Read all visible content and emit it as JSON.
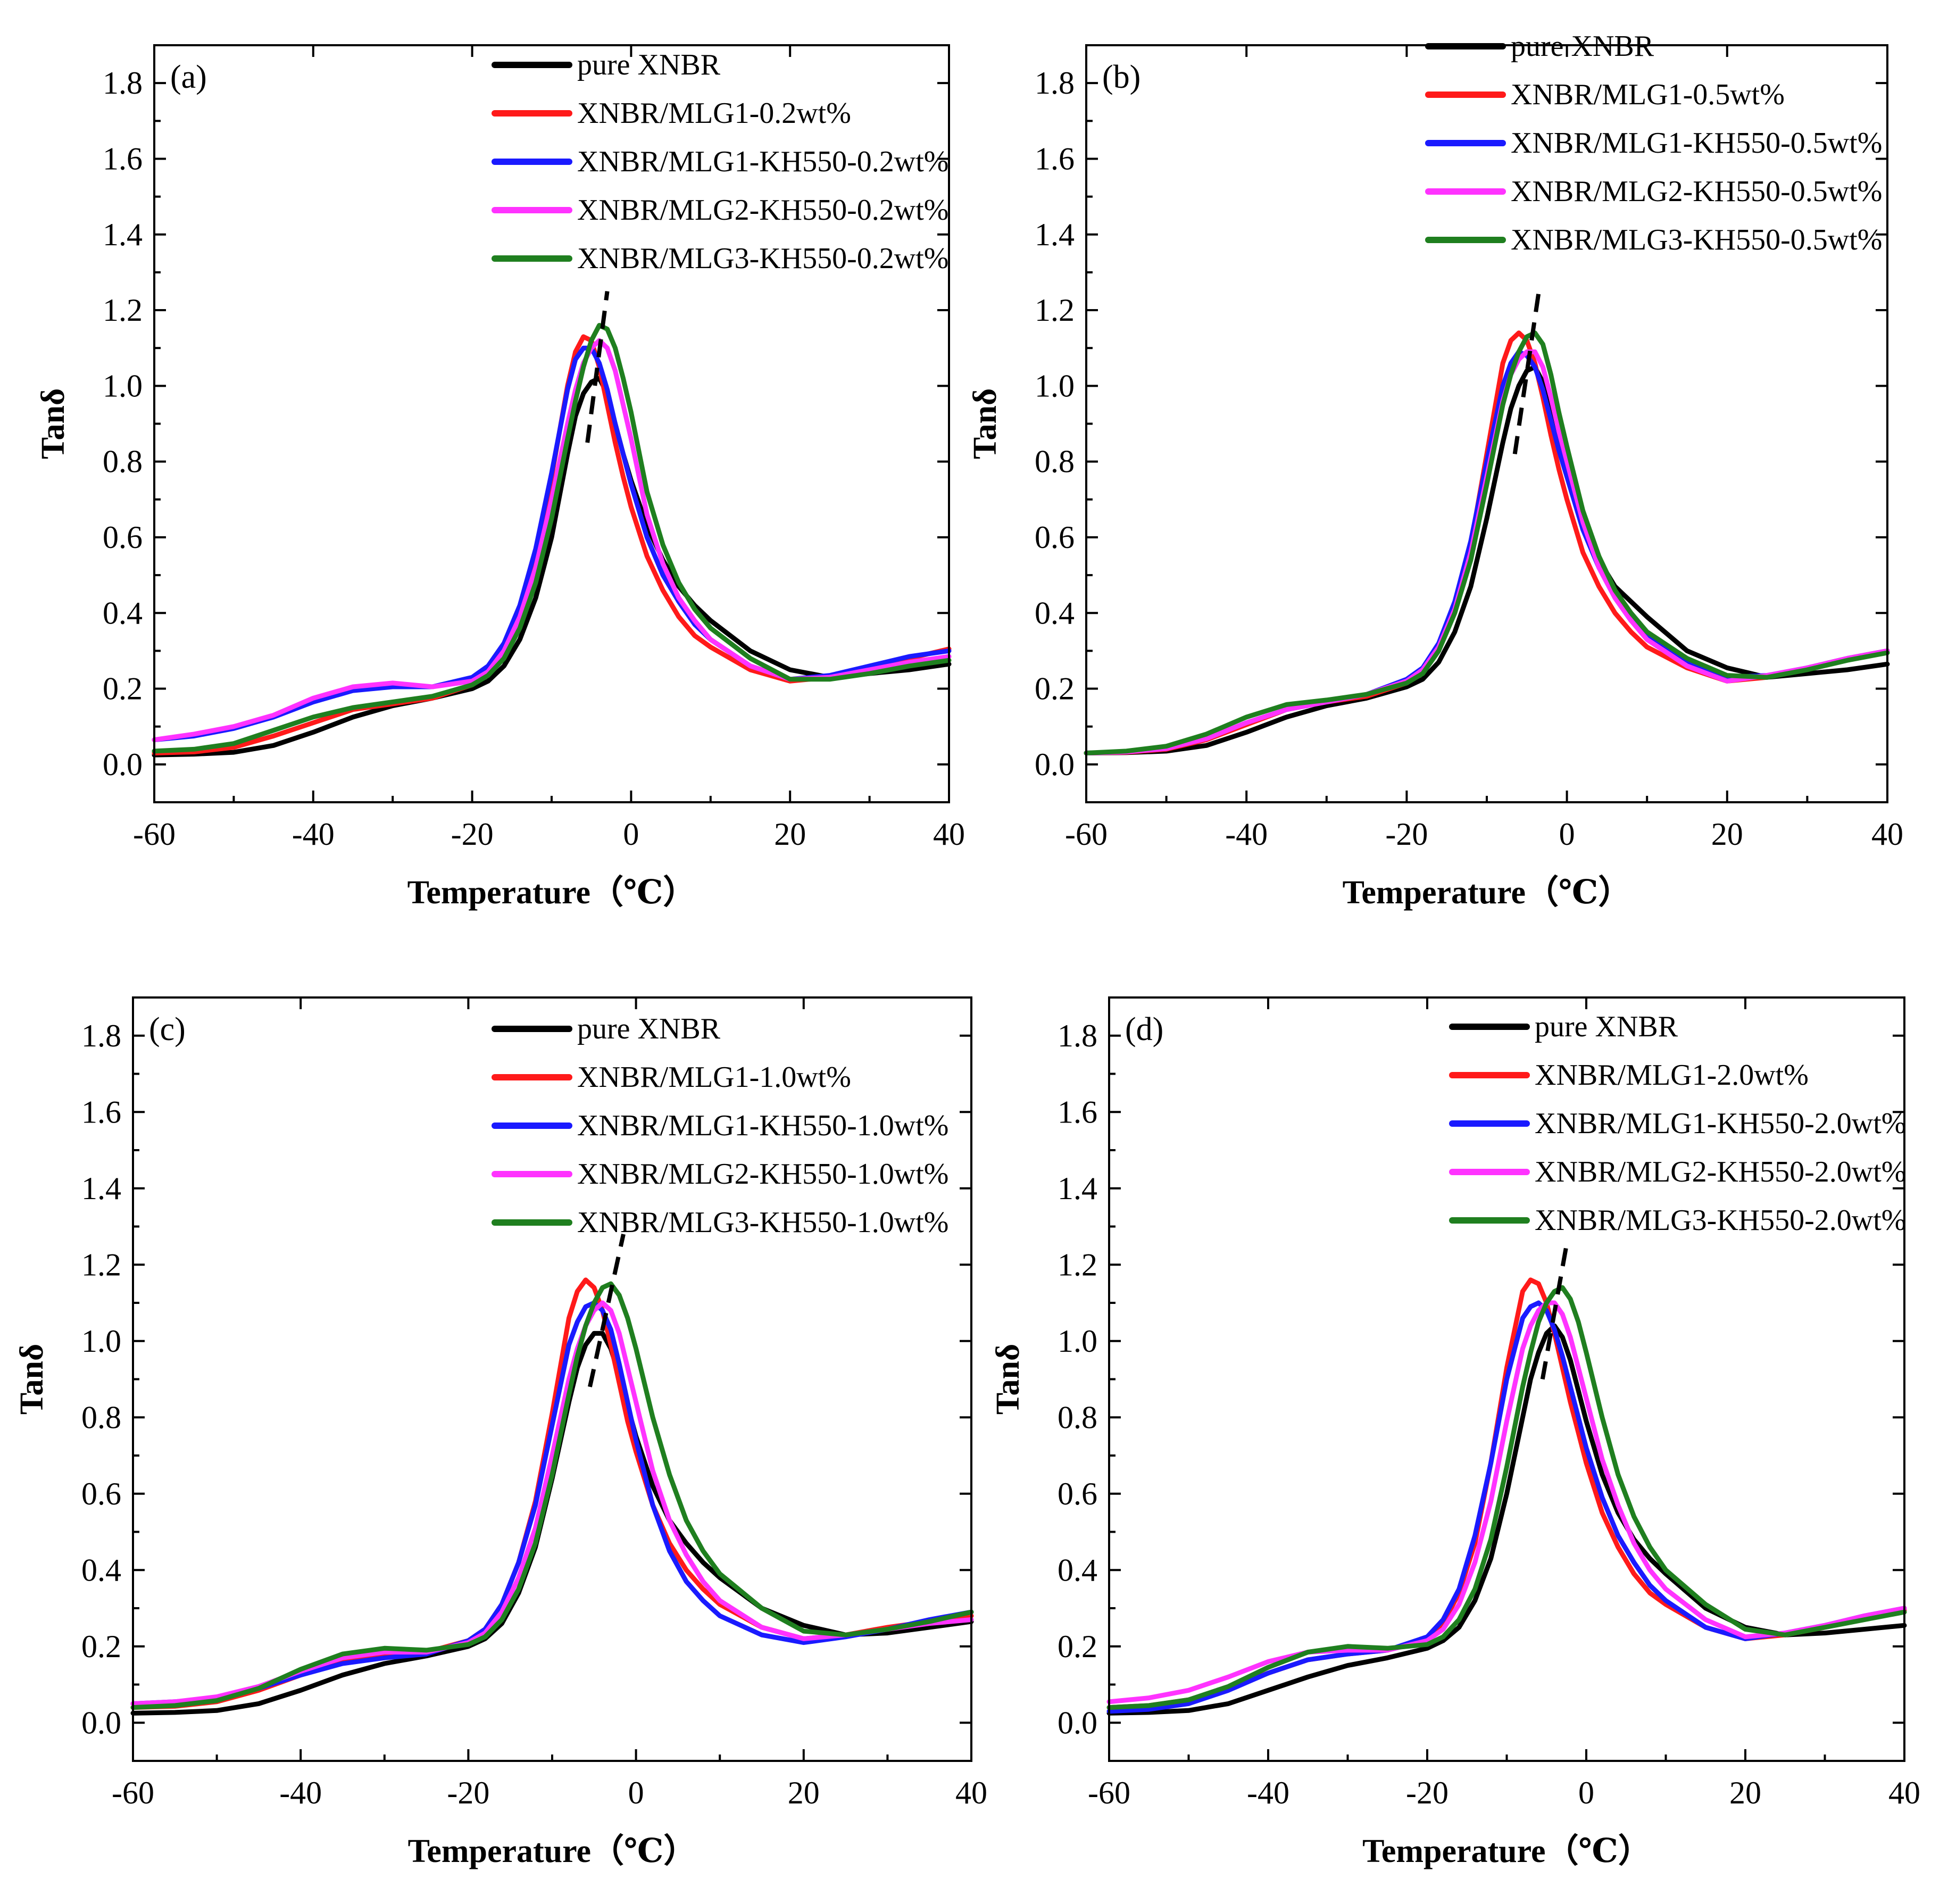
{
  "figure": {
    "colors": {
      "black": "#000000",
      "red": "#ff1a1a",
      "blue": "#1a1aff",
      "magenta": "#ff33ff",
      "green": "#1f7f1f"
    }
  },
  "chart_data": [
    {
      "type": "line",
      "panel_label": "(a)",
      "xlabel": "Temperature（℃）",
      "ylabel": "Tanδ",
      "xlim": [
        -60,
        40
      ],
      "ylim": [
        -0.1,
        1.9
      ],
      "xticks": [
        -60,
        -40,
        -20,
        0,
        20,
        40
      ],
      "yticks": [
        0.0,
        0.2,
        0.4,
        0.6,
        0.8,
        1.0,
        1.2,
        1.4,
        1.6,
        1.8
      ],
      "grid": false,
      "legend_position": "top-right",
      "x": [
        -60,
        -55,
        -50,
        -45,
        -40,
        -35,
        -30,
        -25,
        -20,
        -18,
        -16,
        -14,
        -12,
        -10,
        -8,
        -7,
        -6,
        -5,
        -4,
        -3,
        -2,
        -1,
        0,
        2,
        4,
        6,
        8,
        10,
        15,
        20,
        25,
        30,
        35,
        40
      ],
      "series": [
        {
          "name": "pure XNBR",
          "color": "black",
          "values": [
            0.025,
            0.027,
            0.032,
            0.05,
            0.085,
            0.125,
            0.155,
            0.175,
            0.2,
            0.22,
            0.26,
            0.33,
            0.44,
            0.6,
            0.82,
            0.92,
            0.98,
            1.01,
            1.02,
            0.98,
            0.9,
            0.82,
            0.75,
            0.63,
            0.54,
            0.47,
            0.42,
            0.38,
            0.3,
            0.25,
            0.23,
            0.24,
            0.25,
            0.265
          ]
        },
        {
          "name": "XNBR/MLG1-0.2wt%",
          "color": "red",
          "values": [
            0.03,
            0.033,
            0.045,
            0.075,
            0.11,
            0.145,
            0.16,
            0.175,
            0.21,
            0.24,
            0.3,
            0.4,
            0.55,
            0.76,
            1.0,
            1.09,
            1.13,
            1.12,
            1.05,
            0.95,
            0.85,
            0.76,
            0.68,
            0.55,
            0.46,
            0.39,
            0.34,
            0.31,
            0.25,
            0.22,
            0.23,
            0.25,
            0.28,
            0.305
          ]
        },
        {
          "name": "XNBR/MLG1-KH550-0.2wt%",
          "color": "blue",
          "values": [
            0.065,
            0.075,
            0.095,
            0.125,
            0.165,
            0.195,
            0.205,
            0.205,
            0.23,
            0.26,
            0.32,
            0.42,
            0.57,
            0.77,
            0.99,
            1.07,
            1.1,
            1.1,
            1.06,
            0.99,
            0.9,
            0.82,
            0.74,
            0.6,
            0.5,
            0.43,
            0.37,
            0.33,
            0.26,
            0.225,
            0.235,
            0.26,
            0.285,
            0.3
          ]
        },
        {
          "name": "XNBR/MLG2-KH550-0.2wt%",
          "color": "magenta",
          "values": [
            0.065,
            0.08,
            0.1,
            0.13,
            0.175,
            0.205,
            0.215,
            0.205,
            0.22,
            0.245,
            0.3,
            0.39,
            0.52,
            0.7,
            0.9,
            0.99,
            1.06,
            1.1,
            1.12,
            1.1,
            1.04,
            0.95,
            0.86,
            0.66,
            0.53,
            0.44,
            0.38,
            0.33,
            0.26,
            0.225,
            0.23,
            0.25,
            0.27,
            0.285
          ]
        },
        {
          "name": "XNBR/MLG3-KH550-0.2wt%",
          "color": "green",
          "values": [
            0.035,
            0.04,
            0.055,
            0.09,
            0.125,
            0.15,
            0.165,
            0.18,
            0.21,
            0.235,
            0.28,
            0.36,
            0.48,
            0.65,
            0.86,
            0.96,
            1.05,
            1.12,
            1.16,
            1.15,
            1.1,
            1.02,
            0.93,
            0.72,
            0.58,
            0.48,
            0.41,
            0.36,
            0.28,
            0.225,
            0.225,
            0.24,
            0.26,
            0.275
          ]
        }
      ],
      "peak_guide": {
        "from": [
          -5.5,
          0.85
        ],
        "to": [
          -3.0,
          1.25
        ]
      }
    },
    {
      "type": "line",
      "panel_label": "(b)",
      "xlabel": "Temperature（℃）",
      "ylabel": "Tanδ",
      "xlim": [
        -60,
        40
      ],
      "ylim": [
        -0.1,
        1.9
      ],
      "xticks": [
        -60,
        -40,
        -20,
        0,
        20,
        40
      ],
      "yticks": [
        0.0,
        0.2,
        0.4,
        0.6,
        0.8,
        1.0,
        1.2,
        1.4,
        1.6,
        1.8
      ],
      "grid": false,
      "legend_position": "top-right",
      "x": [
        -60,
        -55,
        -50,
        -45,
        -40,
        -35,
        -30,
        -25,
        -20,
        -18,
        -16,
        -14,
        -12,
        -10,
        -8,
        -7,
        -6,
        -5,
        -4,
        -3,
        -2,
        -1,
        0,
        2,
        4,
        6,
        8,
        10,
        15,
        20,
        25,
        30,
        35,
        40
      ],
      "series": [
        {
          "name": "pure XNBR",
          "color": "black",
          "values": [
            0.03,
            0.031,
            0.035,
            0.05,
            0.085,
            0.125,
            0.155,
            0.175,
            0.205,
            0.225,
            0.27,
            0.35,
            0.47,
            0.65,
            0.85,
            0.94,
            1.0,
            1.04,
            1.05,
            1.01,
            0.94,
            0.86,
            0.78,
            0.64,
            0.54,
            0.47,
            0.43,
            0.39,
            0.3,
            0.255,
            0.23,
            0.24,
            0.25,
            0.265
          ]
        },
        {
          "name": "XNBR/MLG1-0.5wt%",
          "color": "red",
          "values": [
            0.03,
            0.032,
            0.04,
            0.065,
            0.105,
            0.145,
            0.165,
            0.18,
            0.215,
            0.245,
            0.31,
            0.42,
            0.58,
            0.82,
            1.06,
            1.12,
            1.14,
            1.12,
            1.06,
            0.97,
            0.87,
            0.78,
            0.7,
            0.56,
            0.47,
            0.4,
            0.35,
            0.31,
            0.255,
            0.22,
            0.23,
            0.255,
            0.28,
            0.3
          ]
        },
        {
          "name": "XNBR/MLG1-KH550-0.5wt%",
          "color": "blue",
          "values": [
            0.03,
            0.033,
            0.042,
            0.068,
            0.11,
            0.145,
            0.165,
            0.185,
            0.225,
            0.255,
            0.32,
            0.43,
            0.59,
            0.8,
            1.0,
            1.06,
            1.09,
            1.08,
            1.05,
            0.99,
            0.91,
            0.83,
            0.76,
            0.62,
            0.52,
            0.44,
            0.38,
            0.34,
            0.27,
            0.23,
            0.235,
            0.255,
            0.28,
            0.3
          ]
        },
        {
          "name": "XNBR/MLG2-KH550-0.5wt%",
          "color": "magenta",
          "values": [
            0.03,
            0.033,
            0.042,
            0.068,
            0.11,
            0.145,
            0.165,
            0.185,
            0.22,
            0.25,
            0.31,
            0.41,
            0.56,
            0.76,
            0.96,
            1.03,
            1.07,
            1.09,
            1.09,
            1.05,
            0.97,
            0.88,
            0.8,
            0.64,
            0.52,
            0.44,
            0.38,
            0.33,
            0.26,
            0.22,
            0.235,
            0.255,
            0.28,
            0.3
          ]
        },
        {
          "name": "XNBR/MLG3-KH550-0.5wt%",
          "color": "green",
          "values": [
            0.03,
            0.035,
            0.048,
            0.08,
            0.125,
            0.158,
            0.17,
            0.185,
            0.215,
            0.24,
            0.3,
            0.4,
            0.54,
            0.74,
            0.95,
            1.03,
            1.09,
            1.13,
            1.14,
            1.11,
            1.03,
            0.93,
            0.84,
            0.67,
            0.55,
            0.46,
            0.4,
            0.35,
            0.28,
            0.235,
            0.23,
            0.25,
            0.275,
            0.295
          ]
        }
      ],
      "peak_guide": {
        "from": [
          -6.5,
          0.82
        ],
        "to": [
          -3.5,
          1.25
        ]
      }
    },
    {
      "type": "line",
      "panel_label": "(c)",
      "xlabel": "Temperature（℃）",
      "ylabel": "Tanδ",
      "xlim": [
        -60,
        40
      ],
      "ylim": [
        -0.1,
        1.9
      ],
      "xticks": [
        -60,
        -40,
        -20,
        0,
        20,
        40
      ],
      "yticks": [
        0.0,
        0.2,
        0.4,
        0.6,
        0.8,
        1.0,
        1.2,
        1.4,
        1.6,
        1.8
      ],
      "grid": false,
      "legend_position": "top-right",
      "x": [
        -60,
        -55,
        -50,
        -45,
        -40,
        -35,
        -30,
        -25,
        -20,
        -18,
        -16,
        -14,
        -12,
        -10,
        -8,
        -7,
        -6,
        -5,
        -4,
        -3,
        -2,
        -1,
        0,
        2,
        4,
        6,
        8,
        10,
        15,
        20,
        25,
        30,
        35,
        40
      ],
      "series": [
        {
          "name": "pure XNBR",
          "color": "black",
          "values": [
            0.025,
            0.027,
            0.032,
            0.05,
            0.085,
            0.125,
            0.155,
            0.175,
            0.2,
            0.22,
            0.26,
            0.34,
            0.46,
            0.64,
            0.84,
            0.93,
            0.99,
            1.02,
            1.02,
            0.98,
            0.91,
            0.83,
            0.75,
            0.62,
            0.53,
            0.47,
            0.42,
            0.38,
            0.3,
            0.255,
            0.23,
            0.235,
            0.25,
            0.265
          ]
        },
        {
          "name": "XNBR/MLG1-1.0wt%",
          "color": "red",
          "values": [
            0.04,
            0.043,
            0.055,
            0.085,
            0.125,
            0.16,
            0.175,
            0.185,
            0.215,
            0.245,
            0.31,
            0.42,
            0.58,
            0.81,
            1.06,
            1.13,
            1.16,
            1.14,
            1.08,
            0.99,
            0.89,
            0.79,
            0.71,
            0.57,
            0.47,
            0.4,
            0.35,
            0.31,
            0.25,
            0.22,
            0.23,
            0.25,
            0.265,
            0.28
          ]
        },
        {
          "name": "XNBR/MLG1-KH550-1.0wt%",
          "color": "blue",
          "values": [
            0.05,
            0.055,
            0.065,
            0.09,
            0.125,
            0.155,
            0.17,
            0.18,
            0.215,
            0.245,
            0.31,
            0.42,
            0.57,
            0.78,
            0.99,
            1.05,
            1.09,
            1.1,
            1.08,
            1.03,
            0.94,
            0.84,
            0.74,
            0.57,
            0.45,
            0.37,
            0.32,
            0.28,
            0.23,
            0.21,
            0.225,
            0.245,
            0.27,
            0.29
          ]
        },
        {
          "name": "XNBR/MLG2-KH550-1.0wt%",
          "color": "magenta",
          "values": [
            0.05,
            0.055,
            0.068,
            0.095,
            0.135,
            0.17,
            0.185,
            0.185,
            0.21,
            0.235,
            0.29,
            0.38,
            0.51,
            0.7,
            0.9,
            0.98,
            1.04,
            1.08,
            1.1,
            1.08,
            1.02,
            0.93,
            0.84,
            0.66,
            0.53,
            0.44,
            0.37,
            0.32,
            0.25,
            0.22,
            0.23,
            0.245,
            0.26,
            0.27
          ]
        },
        {
          "name": "XNBR/MLG3-KH550-1.0wt%",
          "color": "green",
          "values": [
            0.04,
            0.045,
            0.058,
            0.09,
            0.14,
            0.18,
            0.195,
            0.19,
            0.205,
            0.225,
            0.27,
            0.35,
            0.47,
            0.65,
            0.86,
            0.96,
            1.04,
            1.1,
            1.14,
            1.15,
            1.12,
            1.06,
            0.98,
            0.8,
            0.65,
            0.53,
            0.45,
            0.39,
            0.3,
            0.24,
            0.23,
            0.245,
            0.265,
            0.29
          ]
        }
      ],
      "peak_guide": {
        "from": [
          -5.5,
          0.88
        ],
        "to": [
          -1.5,
          1.28
        ]
      }
    },
    {
      "type": "line",
      "panel_label": "(d)",
      "xlabel": "Temperature（℃）",
      "ylabel": "Tanδ",
      "xlim": [
        -60,
        40
      ],
      "ylim": [
        -0.1,
        1.9
      ],
      "xticks": [
        -60,
        -40,
        -20,
        0,
        20,
        40
      ],
      "yticks": [
        0.0,
        0.2,
        0.4,
        0.6,
        0.8,
        1.0,
        1.2,
        1.4,
        1.6,
        1.8
      ],
      "grid": false,
      "legend_position": "top-right",
      "x": [
        -60,
        -55,
        -50,
        -45,
        -40,
        -35,
        -30,
        -25,
        -20,
        -18,
        -16,
        -14,
        -12,
        -10,
        -8,
        -7,
        -6,
        -5,
        -4,
        -3,
        -2,
        -1,
        0,
        2,
        4,
        6,
        8,
        10,
        15,
        20,
        25,
        30,
        35,
        40
      ],
      "series": [
        {
          "name": "pure XNBR",
          "color": "black",
          "values": [
            0.025,
            0.027,
            0.032,
            0.05,
            0.085,
            0.12,
            0.15,
            0.17,
            0.195,
            0.215,
            0.25,
            0.32,
            0.43,
            0.6,
            0.8,
            0.9,
            0.97,
            1.02,
            1.04,
            1.01,
            0.95,
            0.87,
            0.79,
            0.65,
            0.55,
            0.48,
            0.43,
            0.39,
            0.3,
            0.25,
            0.23,
            0.235,
            0.245,
            0.255
          ]
        },
        {
          "name": "XNBR/MLG1-2.0wt%",
          "color": "red",
          "values": [
            0.04,
            0.045,
            0.06,
            0.09,
            0.13,
            0.165,
            0.18,
            0.19,
            0.22,
            0.26,
            0.34,
            0.47,
            0.68,
            0.93,
            1.13,
            1.16,
            1.15,
            1.1,
            1.02,
            0.93,
            0.84,
            0.76,
            0.68,
            0.55,
            0.46,
            0.39,
            0.34,
            0.31,
            0.25,
            0.22,
            0.23,
            0.25,
            0.275,
            0.295
          ]
        },
        {
          "name": "XNBR/MLG1-KH550-2.0wt%",
          "color": "blue",
          "values": [
            0.03,
            0.035,
            0.05,
            0.085,
            0.13,
            0.165,
            0.18,
            0.19,
            0.225,
            0.27,
            0.35,
            0.49,
            0.68,
            0.9,
            1.06,
            1.09,
            1.1,
            1.08,
            1.03,
            0.96,
            0.88,
            0.8,
            0.72,
            0.59,
            0.49,
            0.42,
            0.36,
            0.32,
            0.25,
            0.22,
            0.235,
            0.255,
            0.28,
            0.3
          ]
        },
        {
          "name": "XNBR/MLG2-KH550-2.0wt%",
          "color": "magenta",
          "values": [
            0.055,
            0.065,
            0.085,
            0.12,
            0.16,
            0.185,
            0.19,
            0.19,
            0.215,
            0.245,
            0.31,
            0.42,
            0.58,
            0.79,
            0.98,
            1.04,
            1.08,
            1.1,
            1.1,
            1.07,
            1.01,
            0.93,
            0.85,
            0.69,
            0.57,
            0.47,
            0.4,
            0.35,
            0.27,
            0.225,
            0.235,
            0.255,
            0.28,
            0.3
          ]
        },
        {
          "name": "XNBR/MLG3-KH550-2.0wt%",
          "color": "green",
          "values": [
            0.04,
            0.045,
            0.06,
            0.095,
            0.145,
            0.185,
            0.2,
            0.195,
            0.205,
            0.225,
            0.27,
            0.35,
            0.48,
            0.67,
            0.88,
            0.97,
            1.05,
            1.1,
            1.13,
            1.14,
            1.11,
            1.05,
            0.97,
            0.8,
            0.65,
            0.54,
            0.46,
            0.4,
            0.31,
            0.245,
            0.23,
            0.25,
            0.27,
            0.29
          ]
        }
      ],
      "peak_guide": {
        "from": [
          -5.5,
          0.9
        ],
        "to": [
          -2.5,
          1.25
        ]
      }
    }
  ]
}
